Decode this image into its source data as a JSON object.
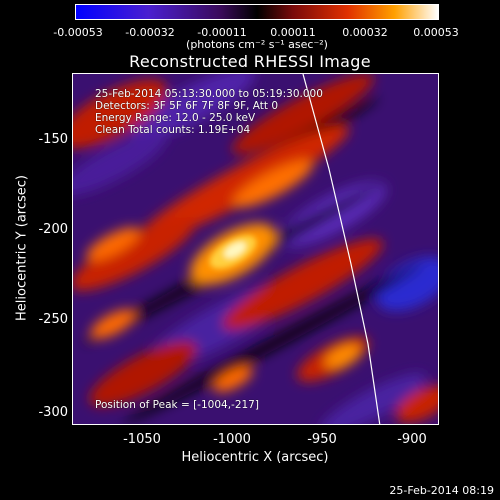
{
  "colorbar": {
    "ticks": [
      "-0.00053",
      "-0.00032",
      "-0.00011",
      "0.00011",
      "0.00032",
      "0.00053"
    ],
    "unit_label": "(photons cm⁻² s⁻¹ asec⁻²)"
  },
  "title": "Reconstructed RHESSI Image",
  "annotations": {
    "time_range": "25-Feb-2014 05:13:30.000 to 05:19:30.000",
    "detectors": "Detectors: 3F 5F 6F 7F 8F 9F, Att 0",
    "energy_range": "Energy Range: 12.0 - 25.0 keV",
    "method": "Clean     Total counts: 1.19E+04",
    "peak": "Position of Peak = [-1004,-217]"
  },
  "axes": {
    "xlabel": "Heliocentric X (arcsec)",
    "ylabel": "Heliocentric Y (arcsec)",
    "xticks": [
      "-1050",
      "-1000",
      "-950",
      "-900"
    ],
    "yticks": [
      "-150",
      "-200",
      "-250",
      "-300"
    ]
  },
  "footer": "25-Feb-2014 08:19",
  "colors": {
    "background": "#000000",
    "text": "#ffffff"
  }
}
